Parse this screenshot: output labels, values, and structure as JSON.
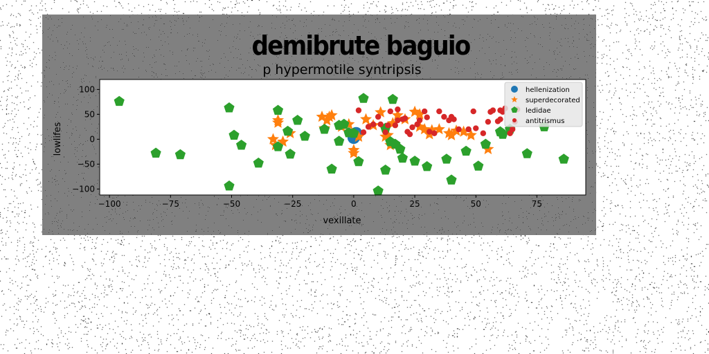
{
  "figure": {
    "suptitle": "demibrute baguio",
    "background": "#808080"
  },
  "chart_data": {
    "type": "scatter",
    "title": "p hypermotile syntripsis",
    "xlabel": "vexillate",
    "ylabel": "lowlifes",
    "xlim": [
      -104,
      95
    ],
    "ylim": [
      -112,
      120
    ],
    "xticks": [
      "−100",
      "−75",
      "−50",
      "−25",
      "0",
      "25",
      "50",
      "75"
    ],
    "yticks": [
      "100",
      "50",
      "0",
      "−50",
      "−100"
    ],
    "xtick_values": [
      -100,
      -75,
      -50,
      -25,
      0,
      25,
      50,
      75
    ],
    "ytick_values": [
      100,
      50,
      0,
      -50,
      -100
    ],
    "grid": false,
    "legend_position": "top-right",
    "series": [
      {
        "name": "hellenization",
        "marker": "circle",
        "color": "#1f77b4",
        "points": [
          [
            0,
            10
          ],
          [
            0,
            5
          ],
          [
            1,
            8
          ],
          [
            0,
            3
          ],
          [
            1,
            12
          ]
        ]
      },
      {
        "name": "superdecorated",
        "marker": "star",
        "color": "#ff7f0e",
        "points": [
          [
            -33,
            0
          ],
          [
            -32,
            -12
          ],
          [
            -31,
            33
          ],
          [
            -31,
            38
          ],
          [
            -29,
            -5
          ],
          [
            -26,
            12
          ],
          [
            -13,
            45
          ],
          [
            -12,
            22
          ],
          [
            -11,
            38
          ],
          [
            -10,
            45
          ],
          [
            -9,
            48
          ],
          [
            -5,
            25
          ],
          [
            -2,
            30
          ],
          [
            0,
            -22
          ],
          [
            0,
            -28
          ],
          [
            2,
            5
          ],
          [
            5,
            40
          ],
          [
            8,
            28
          ],
          [
            11,
            54
          ],
          [
            13,
            5
          ],
          [
            14,
            8
          ],
          [
            15,
            -12
          ],
          [
            16,
            32
          ],
          [
            18,
            48
          ],
          [
            21,
            40
          ],
          [
            25,
            55
          ],
          [
            27,
            50
          ],
          [
            29,
            20
          ],
          [
            31,
            10
          ],
          [
            32,
            18
          ],
          [
            39,
            12
          ],
          [
            40,
            8
          ],
          [
            42,
            17
          ],
          [
            45,
            15
          ],
          [
            48,
            8
          ],
          [
            55,
            -20
          ],
          [
            27,
            25
          ],
          [
            35,
            20
          ]
        ]
      },
      {
        "name": "ledidae",
        "marker": "pentagon",
        "color": "#2ca02c",
        "points": [
          [
            -96,
            76
          ],
          [
            -81,
            -28
          ],
          [
            -71,
            -31
          ],
          [
            -51,
            63
          ],
          [
            -51,
            -94
          ],
          [
            -49,
            8
          ],
          [
            -46,
            -12
          ],
          [
            -39,
            -48
          ],
          [
            -31,
            58
          ],
          [
            -31,
            -15
          ],
          [
            -27,
            16
          ],
          [
            -26,
            -30
          ],
          [
            -23,
            38
          ],
          [
            -20,
            6
          ],
          [
            -12,
            20
          ],
          [
            -9,
            -60
          ],
          [
            -6,
            28
          ],
          [
            -6,
            -4
          ],
          [
            -2,
            13
          ],
          [
            0,
            12
          ],
          [
            2,
            -45
          ],
          [
            4,
            82
          ],
          [
            10,
            -104
          ],
          [
            13,
            -62
          ],
          [
            13,
            22
          ],
          [
            16,
            80
          ],
          [
            17,
            -10
          ],
          [
            19,
            -20
          ],
          [
            20,
            -38
          ],
          [
            25,
            -44
          ],
          [
            30,
            -55
          ],
          [
            38,
            -40
          ],
          [
            40,
            -82
          ],
          [
            46,
            -24
          ],
          [
            51,
            -54
          ],
          [
            54,
            -10
          ],
          [
            61,
            10
          ],
          [
            64,
            20
          ],
          [
            71,
            -29
          ],
          [
            78,
            25
          ],
          [
            86,
            -40
          ],
          [
            15,
            -5
          ],
          [
            -4,
            30
          ],
          [
            60,
            15
          ]
        ]
      },
      {
        "name": "antitrismus",
        "marker": "circle",
        "color": "#d62728",
        "points": [
          [
            2,
            58
          ],
          [
            6,
            25
          ],
          [
            8,
            30
          ],
          [
            10,
            45
          ],
          [
            11,
            30
          ],
          [
            13,
            14
          ],
          [
            14,
            28
          ],
          [
            15,
            56
          ],
          [
            17,
            28
          ],
          [
            18,
            38
          ],
          [
            18,
            60
          ],
          [
            20,
            40
          ],
          [
            21,
            42
          ],
          [
            22,
            15
          ],
          [
            23,
            10
          ],
          [
            24,
            24
          ],
          [
            26,
            30
          ],
          [
            27,
            38
          ],
          [
            29,
            56
          ],
          [
            30,
            44
          ],
          [
            31,
            15
          ],
          [
            33,
            12
          ],
          [
            35,
            56
          ],
          [
            37,
            45
          ],
          [
            39,
            38
          ],
          [
            41,
            40
          ],
          [
            43,
            20
          ],
          [
            47,
            20
          ],
          [
            49,
            56
          ],
          [
            50,
            22
          ],
          [
            53,
            12
          ],
          [
            55,
            35
          ],
          [
            56,
            55
          ],
          [
            57,
            58
          ],
          [
            59,
            36
          ],
          [
            60,
            40
          ],
          [
            60,
            58
          ],
          [
            61,
            55
          ],
          [
            62,
            62
          ],
          [
            64,
            12
          ],
          [
            65,
            20
          ],
          [
            66,
            35
          ],
          [
            67,
            60
          ],
          [
            40,
            45
          ],
          [
            4,
            14
          ]
        ]
      }
    ]
  }
}
